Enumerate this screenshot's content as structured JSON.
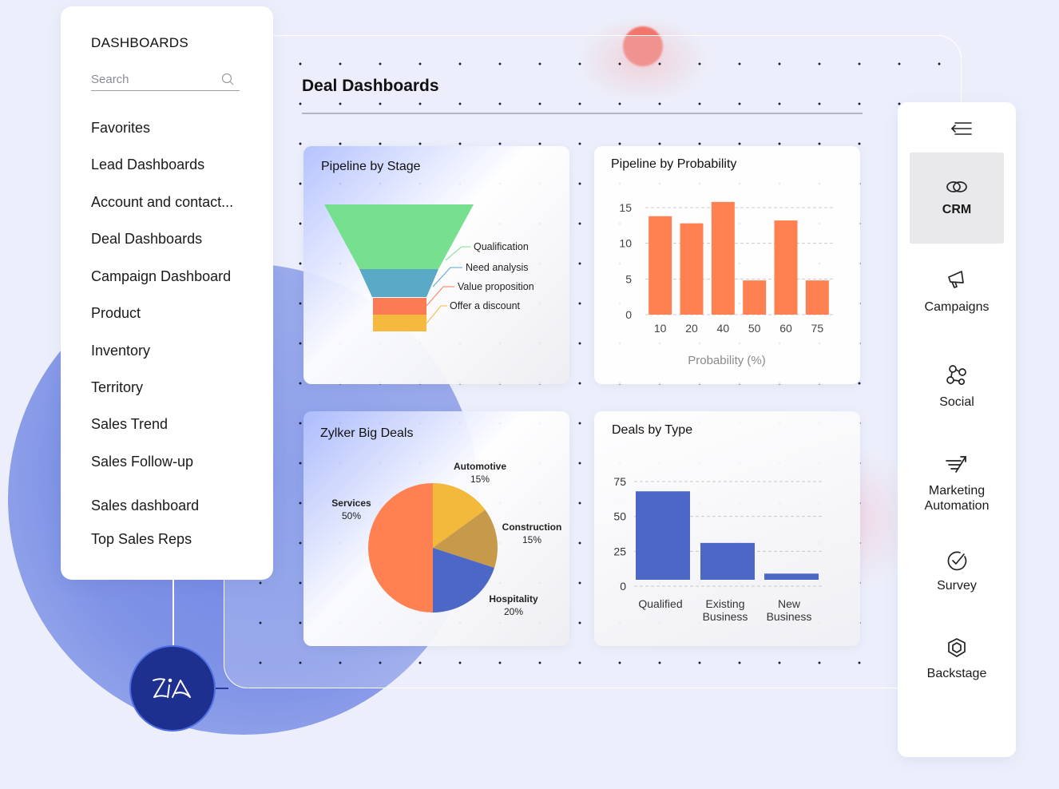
{
  "sidebar": {
    "heading": "DASHBOARDS",
    "search_placeholder": "Search",
    "items": [
      {
        "label": "Favorites"
      },
      {
        "label": "Lead Dashboards"
      },
      {
        "label": "Account and contact..."
      },
      {
        "label": "Deal Dashboards"
      },
      {
        "label": "Campaign Dashboard"
      },
      {
        "label": "Product"
      },
      {
        "label": "Inventory"
      },
      {
        "label": "Territory"
      },
      {
        "label": "Sales Trend"
      },
      {
        "label": "Sales Follow-up"
      },
      {
        "label": "Sales dashboard"
      },
      {
        "label": "Top Sales Reps"
      }
    ]
  },
  "main": {
    "title": "Deal Dashboards"
  },
  "zia": {
    "icon": "zia-logo-icon"
  },
  "right_nav": {
    "collapse_icon": "collapse-menu-icon",
    "items": [
      {
        "label": "CRM",
        "icon": "crm-link-icon",
        "active": true
      },
      {
        "label": "Campaigns",
        "icon": "megaphone-icon"
      },
      {
        "label": "Social",
        "icon": "social-network-icon"
      },
      {
        "label": "Marketing\nAutomation",
        "icon": "marketing-automation-icon"
      },
      {
        "label": "Survey",
        "icon": "check-circle-icon"
      },
      {
        "label": "Backstage",
        "icon": "backstage-cube-icon"
      }
    ]
  },
  "colors": {
    "funnel": [
      "#77e08f",
      "#5aa9c6",
      "#fb7b55",
      "#f5b940"
    ],
    "bar_orange": "#ff8051",
    "bar_blue": "#4c67c5",
    "pie": {
      "Services": "#ff8051",
      "Automotive": "#f2b93b",
      "Construction": "#c79a4b",
      "Hospitality": "#4c67c5"
    },
    "zia_badge": "#1d2f8f"
  },
  "chart_data": [
    {
      "type": "funnel",
      "title": "Pipeline by Stage",
      "stages": [
        "Qualification",
        "Need analysis",
        "Value proposition",
        "Offer a discount"
      ]
    },
    {
      "type": "bar",
      "title": "Pipeline by Probability",
      "categories": [
        "10",
        "20",
        "40",
        "50",
        "60",
        "75"
      ],
      "values": [
        13.8,
        12.8,
        15.8,
        4.8,
        13.2,
        4.8
      ],
      "xlabel": "Probability (%)",
      "ylabel": "",
      "ylim": [
        0,
        15
      ],
      "yticks": [
        0,
        5,
        10,
        15
      ],
      "grid": true
    },
    {
      "type": "pie",
      "title": "Zylker Big Deals",
      "labels": [
        "Automotive",
        "Construction",
        "Hospitality",
        "Services"
      ],
      "values": [
        15,
        15,
        20,
        50
      ],
      "value_labels": [
        "15%",
        "15%",
        "20%",
        "50%"
      ]
    },
    {
      "type": "bar",
      "title": "Deals by Type",
      "categories": [
        "Qualified",
        "Existing\nBusiness",
        "New\nBusiness"
      ],
      "values": [
        68,
        31,
        9
      ],
      "ylim": [
        0,
        75
      ],
      "yticks": [
        0,
        25,
        50,
        75
      ],
      "grid": true
    }
  ]
}
